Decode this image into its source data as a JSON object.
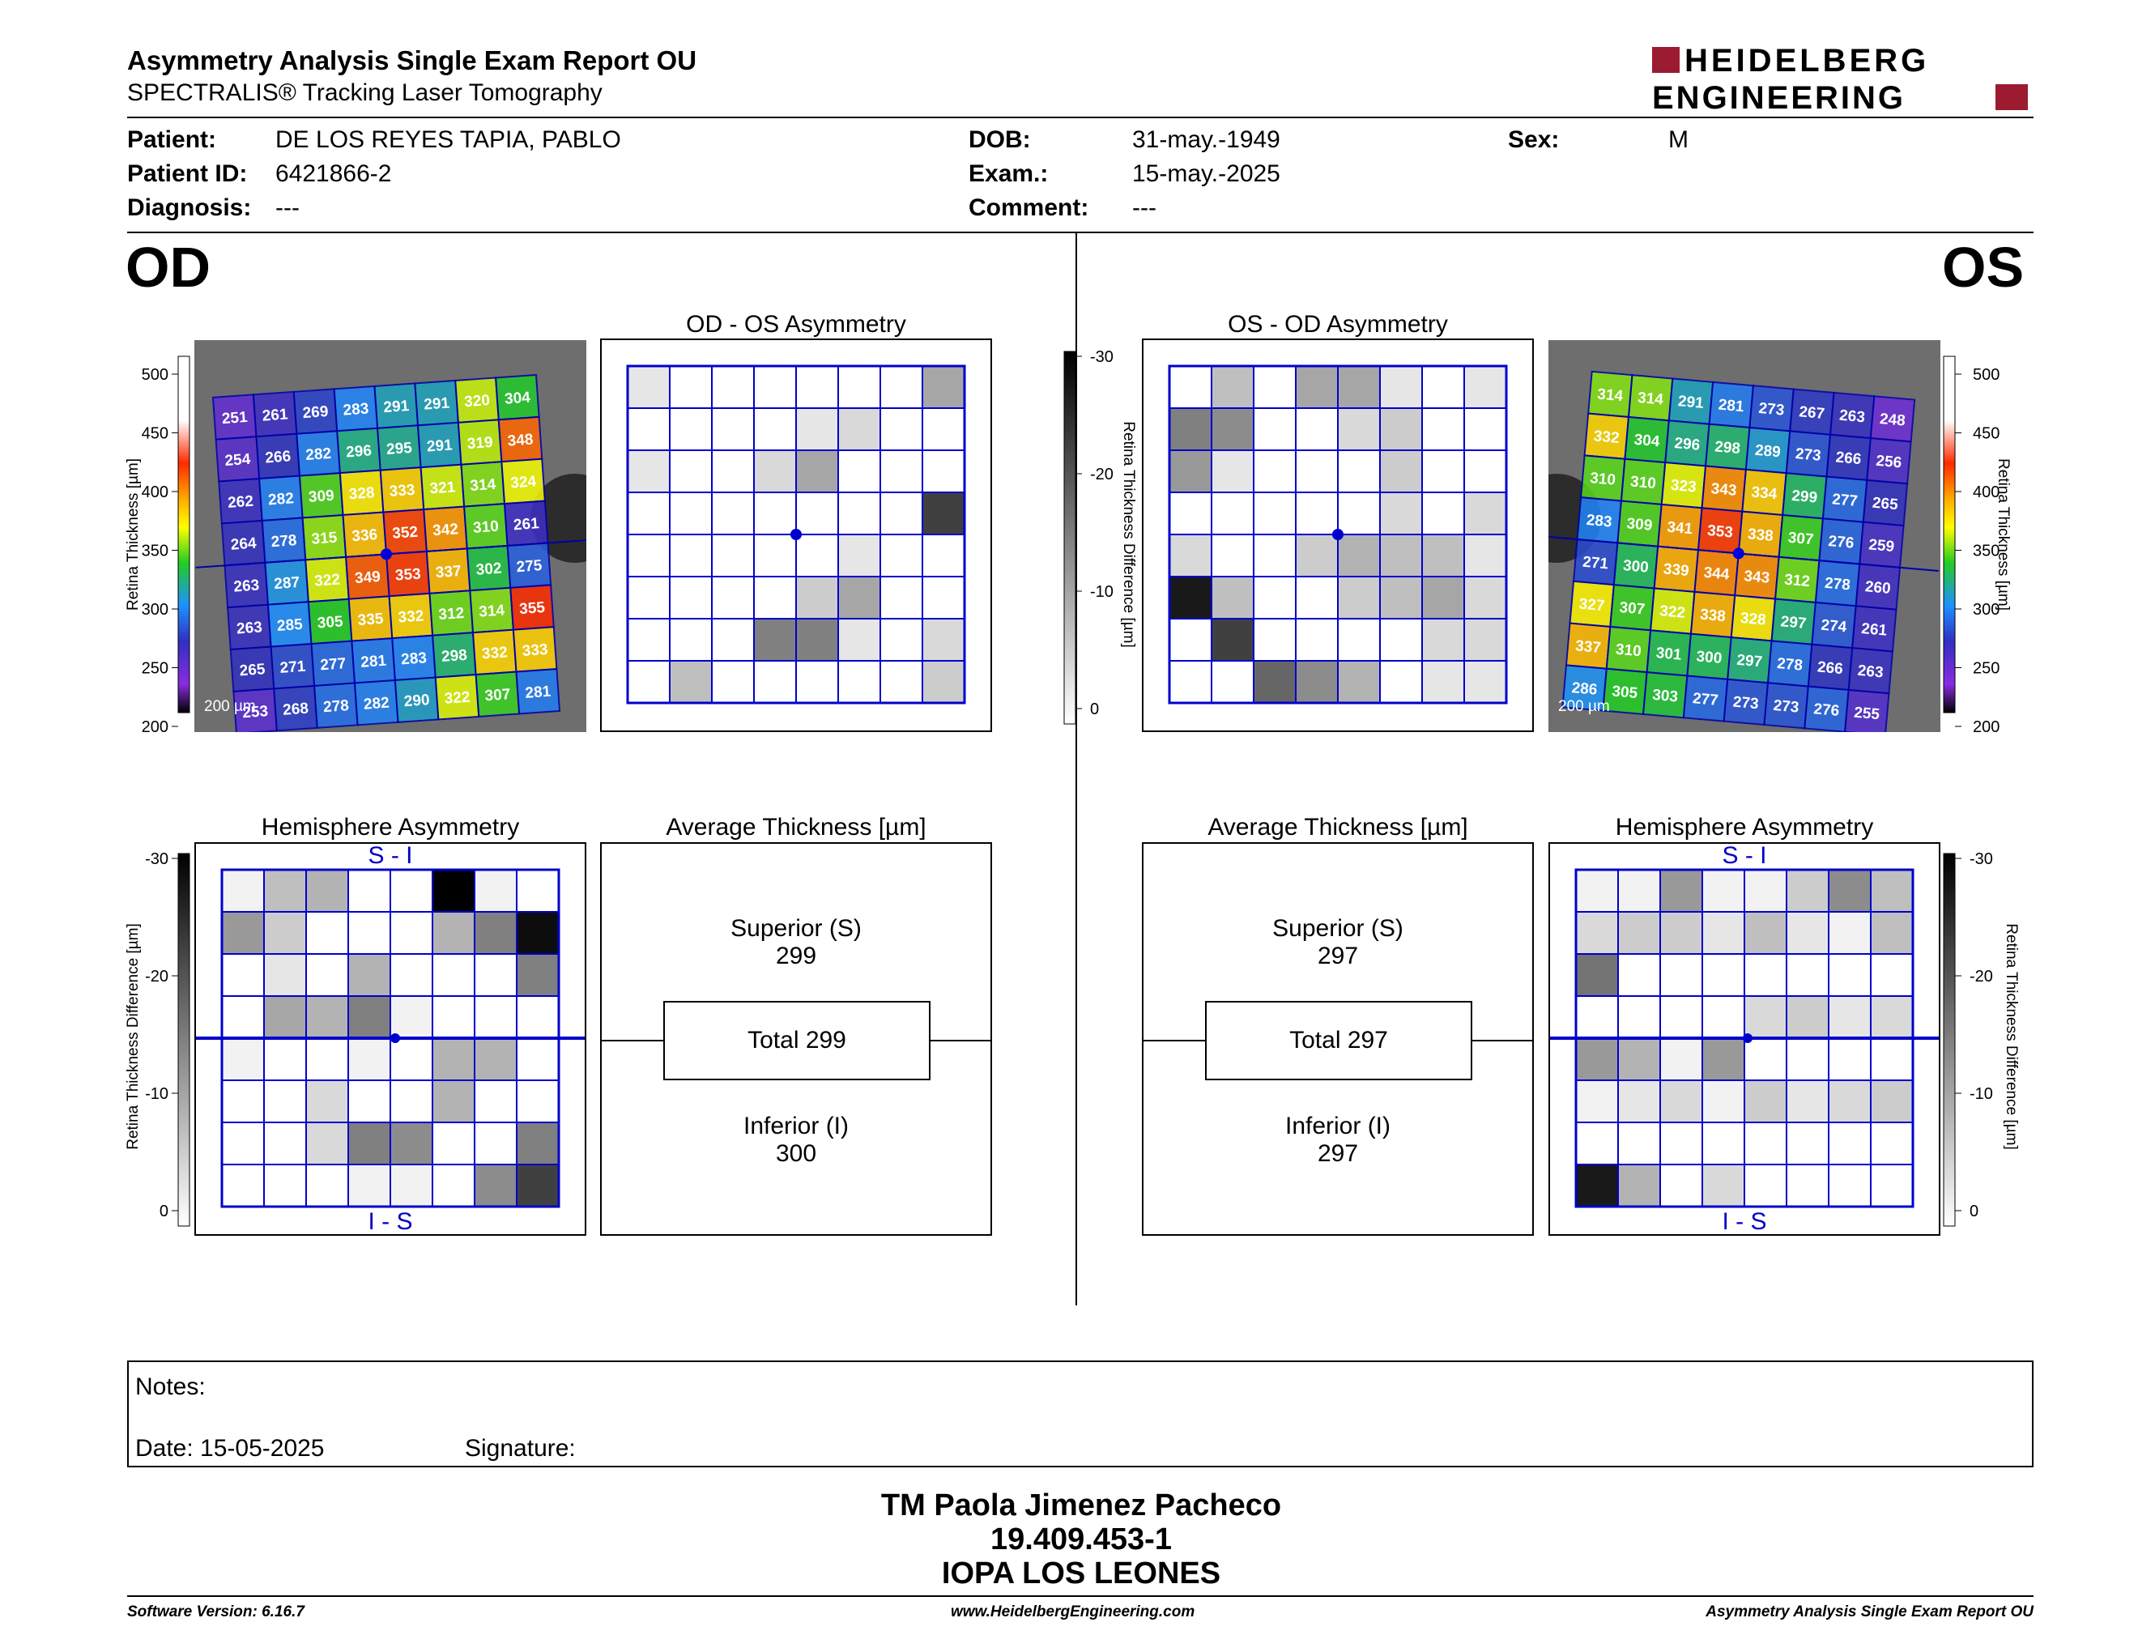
{
  "header": {
    "title": "Asymmetry Analysis Single Exam Report OU",
    "subtitle": "SPECTRALIS® Tracking Laser Tomography",
    "logo_line1": "HEIDELBERG",
    "logo_line2": "ENGINEERING"
  },
  "patient": {
    "patient_label": "Patient:",
    "patient_value": "DE LOS REYES TAPIA, PABLO",
    "id_label": "Patient ID:",
    "id_value": "6421866-2",
    "diagnosis_label": "Diagnosis:",
    "diagnosis_value": "---",
    "dob_label": "DOB:",
    "dob_value": "31-may.-1949",
    "exam_label": "Exam.:",
    "exam_value": "15-may.-2025",
    "comment_label": "Comment:",
    "comment_value": "---",
    "sex_label": "Sex:",
    "sex_value": "M"
  },
  "od": {
    "eye_label": "OD",
    "asym_title": "OD - OS Asymmetry",
    "hemi_title": "Hemisphere Asymmetry",
    "avg_title": "Average Thickness [µm]",
    "scale_bar": "200 µm",
    "superior_label": "Superior (S)",
    "superior_value": "299",
    "total_label": "Total 299",
    "inferior_label": "Inferior (I)",
    "inferior_value": "300",
    "s_i": "S - I",
    "i_s": "I - S",
    "thickness_grid": [
      [
        "251",
        "261",
        "269",
        "283",
        "291",
        "291",
        "320",
        "304"
      ],
      [
        "254",
        "266",
        "282",
        "296",
        "295",
        "291",
        "319",
        "348"
      ],
      [
        "262",
        "282",
        "309",
        "328",
        "333",
        "321",
        "314",
        "324"
      ],
      [
        "264",
        "278",
        "315",
        "336",
        "352",
        "342",
        "310",
        "261"
      ],
      [
        "263",
        "287",
        "322",
        "349",
        "353",
        "337",
        "302",
        "275"
      ],
      [
        "263",
        "285",
        "305",
        "335",
        "332",
        "312",
        "314",
        "355"
      ],
      [
        "265",
        "271",
        "277",
        "281",
        "283",
        "298",
        "332",
        "333"
      ],
      [
        "253",
        "268",
        "278",
        "282",
        "290",
        "322",
        "307",
        "281"
      ]
    ],
    "asym_grid": [
      [
        0.1,
        0,
        0,
        0,
        0,
        0,
        0,
        0.35
      ],
      [
        0,
        0,
        0,
        0,
        0.1,
        0.15,
        0,
        0
      ],
      [
        0.1,
        0,
        0,
        0.15,
        0.35,
        0,
        0,
        0
      ],
      [
        0,
        0,
        0,
        0,
        0,
        0,
        0,
        0.75
      ],
      [
        0,
        0,
        0,
        0,
        0,
        0.1,
        0,
        0
      ],
      [
        0,
        0,
        0,
        0,
        0.2,
        0.35,
        0,
        0
      ],
      [
        0,
        0,
        0,
        0.5,
        0.5,
        0.1,
        0,
        0.15
      ],
      [
        0,
        0.25,
        0,
        0,
        0,
        0,
        0,
        0.2
      ]
    ],
    "hemi_grid": [
      [
        0.05,
        0.25,
        0.3,
        0,
        0,
        1.0,
        0.05,
        0
      ],
      [
        0.4,
        0.2,
        0,
        0,
        0,
        0.3,
        0.5,
        0.95
      ],
      [
        0,
        0.1,
        0,
        0.3,
        0,
        0,
        0,
        0.5
      ],
      [
        0,
        0.35,
        0.3,
        0.5,
        0.05,
        0,
        0,
        0
      ],
      [
        0.05,
        0,
        0,
        0.05,
        0,
        0.3,
        0.3,
        0
      ],
      [
        0,
        0,
        0.15,
        0,
        0,
        0.3,
        0,
        0
      ],
      [
        0,
        0,
        0.15,
        0.5,
        0.45,
        0,
        0,
        0.5
      ],
      [
        0,
        0,
        0,
        0.05,
        0.05,
        0,
        0.45,
        0.75
      ]
    ]
  },
  "os": {
    "eye_label": "OS",
    "asym_title": "OS - OD Asymmetry",
    "hemi_title": "Hemisphere Asymmetry",
    "avg_title": "Average Thickness [µm]",
    "scale_bar": "200 µm",
    "superior_label": "Superior (S)",
    "superior_value": "297",
    "total_label": "Total 297",
    "inferior_label": "Inferior (I)",
    "inferior_value": "297",
    "s_i": "S - I",
    "i_s": "I - S",
    "thickness_grid": [
      [
        "314",
        "314",
        "291",
        "281",
        "273",
        "267",
        "263",
        "248"
      ],
      [
        "332",
        "304",
        "296",
        "298",
        "289",
        "273",
        "266",
        "256"
      ],
      [
        "310",
        "310",
        "323",
        "343",
        "334",
        "299",
        "277",
        "265"
      ],
      [
        "283",
        "309",
        "341",
        "353",
        "338",
        "307",
        "276",
        "259"
      ],
      [
        "271",
        "300",
        "339",
        "344",
        "343",
        "312",
        "278",
        "260"
      ],
      [
        "327",
        "307",
        "322",
        "338",
        "328",
        "297",
        "274",
        "261"
      ],
      [
        "337",
        "310",
        "301",
        "300",
        "297",
        "278",
        "266",
        "263"
      ],
      [
        "286",
        "305",
        "303",
        "277",
        "273",
        "273",
        "276",
        "255"
      ]
    ],
    "asym_grid": [
      [
        0,
        0.25,
        0,
        0.35,
        0.35,
        0.1,
        0,
        0.1
      ],
      [
        0.5,
        0.45,
        0,
        0,
        0.15,
        0.2,
        0,
        0
      ],
      [
        0.4,
        0.1,
        0,
        0,
        0,
        0.2,
        0,
        0
      ],
      [
        0,
        0,
        0,
        0,
        0,
        0.15,
        0,
        0.15
      ],
      [
        0.15,
        0,
        0,
        0.2,
        0.3,
        0.25,
        0.25,
        0.1
      ],
      [
        0.9,
        0.25,
        0,
        0,
        0.2,
        0.25,
        0.35,
        0.15
      ],
      [
        0,
        0.75,
        0,
        0,
        0,
        0,
        0.15,
        0.15
      ],
      [
        0,
        0,
        0.6,
        0.45,
        0.3,
        0,
        0.1,
        0.1
      ]
    ],
    "hemi_grid": [
      [
        0.05,
        0.05,
        0.4,
        0.05,
        0.05,
        0.2,
        0.45,
        0.25
      ],
      [
        0.15,
        0.2,
        0.2,
        0.1,
        0.25,
        0.1,
        0.05,
        0.25
      ],
      [
        0.55,
        0,
        0,
        0,
        0,
        0,
        0,
        0
      ],
      [
        0,
        0,
        0,
        0,
        0.15,
        0.2,
        0.1,
        0.15
      ],
      [
        0.4,
        0.3,
        0.05,
        0.4,
        0,
        0,
        0,
        0
      ],
      [
        0.05,
        0.1,
        0.15,
        0.05,
        0.2,
        0.1,
        0.15,
        0.2
      ],
      [
        0,
        0,
        0,
        0,
        0,
        0,
        0,
        0
      ],
      [
        0.9,
        0.3,
        0,
        0.15,
        0,
        0,
        0,
        0
      ]
    ]
  },
  "thickness_scale": {
    "ticks": [
      "500",
      "450",
      "400",
      "350",
      "300",
      "250",
      "200"
    ],
    "label": "Retina Thickness [µm]"
  },
  "difference_scale": {
    "ticks": [
      "-30",
      "-20",
      "-10",
      "0"
    ],
    "label": "Retina Thickness Difference [µm]"
  },
  "notes": {
    "notes_label": "Notes:",
    "date_label": "Date: 15-05-2025",
    "signature_label": "Signature:"
  },
  "stamp": {
    "name": "TM Paola Jimenez Pacheco",
    "id": "19.409.453-1",
    "institution": "IOPA LOS LEONES"
  },
  "footer": {
    "software": "Software Version: 6.16.7",
    "website": "www.HeidelbergEngineering.com",
    "report": "Asymmetry Analysis Single Exam Report OU"
  },
  "colors": {
    "grid_blue": "#0000cc",
    "logo_red": "#9b1b30"
  }
}
